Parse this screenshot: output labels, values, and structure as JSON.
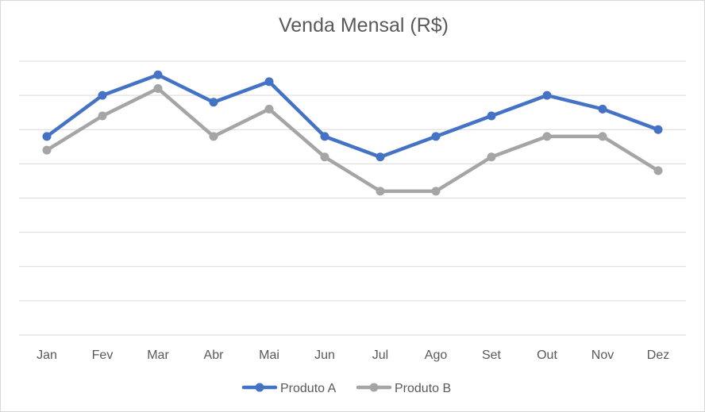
{
  "chart_data": {
    "type": "line",
    "title": "Venda Mensal (R$)",
    "categories": [
      "Jan",
      "Fev",
      "Mar",
      "Abr",
      "Mai",
      "Jun",
      "Jul",
      "Ago",
      "Set",
      "Out",
      "Nov",
      "Dez"
    ],
    "ylim": [
      0,
      8
    ],
    "grid": true,
    "y_tick_labels_visible": false,
    "legend_position": "bottom",
    "series": [
      {
        "name": "Produto A",
        "color": "#4472c4",
        "values": [
          5.8,
          7.0,
          7.6,
          6.8,
          7.4,
          5.8,
          5.2,
          5.8,
          6.4,
          7.0,
          6.6,
          6.0
        ]
      },
      {
        "name": "Produto B",
        "color": "#a5a5a5",
        "values": [
          5.4,
          6.4,
          7.2,
          5.8,
          6.6,
          5.2,
          4.2,
          4.2,
          5.2,
          5.8,
          5.8,
          4.8
        ]
      }
    ]
  }
}
